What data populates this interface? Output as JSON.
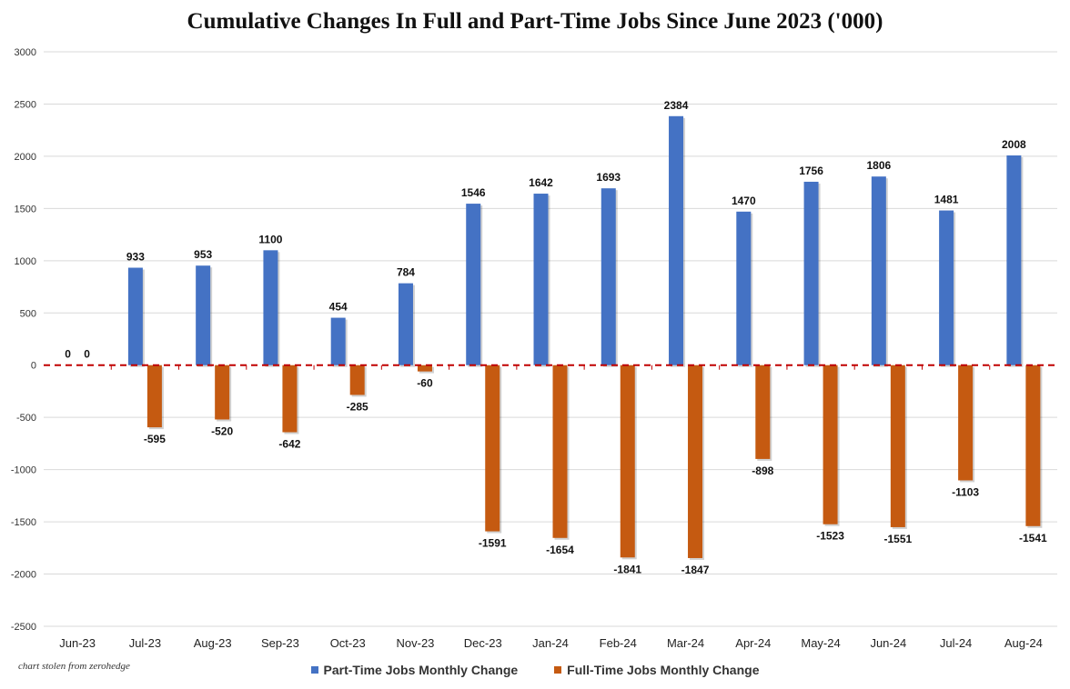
{
  "chart_data": {
    "type": "bar",
    "title": "Cumulative Changes In Full and Part-Time Jobs Since June 2023 ('000)",
    "xlabel": "",
    "ylabel": "",
    "ylim": [
      -2500,
      3000
    ],
    "yticks": [
      3000,
      2500,
      2000,
      1500,
      1000,
      500,
      0,
      -500,
      -1000,
      -1500,
      -2000,
      -2500
    ],
    "yticklabels": [
      "3000",
      "2500",
      "2000",
      "1500",
      "1000",
      "500",
      "0",
      "-500",
      "-1000",
      "-1500",
      "-2000",
      "-2500"
    ],
    "categories": [
      "Jun-23",
      "Jul-23",
      "Aug-23",
      "Sep-23",
      "Oct-23",
      "Nov-23",
      "Dec-23",
      "Jan-24",
      "Feb-24",
      "Mar-24",
      "Apr-24",
      "May-24",
      "Jun-24",
      "Jul-24",
      "Aug-24"
    ],
    "series": [
      {
        "name": "Part-Time Jobs Monthly Change",
        "color": "#4472C4",
        "values": [
          0,
          933,
          953,
          1100,
          454,
          784,
          1546,
          1642,
          1693,
          2384,
          1470,
          1756,
          1806,
          1481,
          2008
        ],
        "labels": [
          "0",
          "933",
          "953",
          "1100",
          "454",
          "784",
          "1546",
          "1642",
          "1693",
          "2384",
          "1470",
          "1756",
          "1806",
          "1481",
          "2008"
        ]
      },
      {
        "name": "Full-Time Jobs Monthly Change",
        "color": "#C55A11",
        "values": [
          0,
          -595,
          -520,
          -642,
          -285,
          -60,
          -1591,
          -1654,
          -1841,
          -1847,
          -898,
          -1523,
          -1551,
          -1103,
          -1541
        ],
        "labels": [
          "0",
          "-595",
          "-520",
          "-642",
          "-285",
          "-60",
          "-1591",
          "-1654",
          "-1841",
          "-1847",
          "-898",
          "-1523",
          "-1551",
          "-1103",
          "-1541"
        ]
      }
    ],
    "grid": true,
    "zero_line": {
      "style": "dashed",
      "color": "#C00000"
    },
    "legend": "bottom-center"
  },
  "source_note": "chart stolen from zerohedge"
}
